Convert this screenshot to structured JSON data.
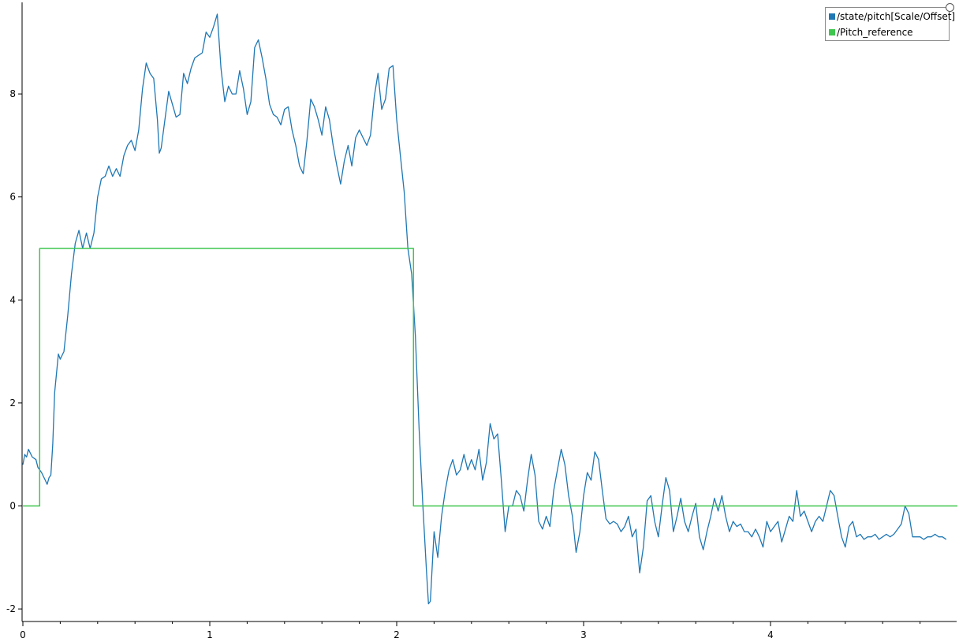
{
  "chart_data": {
    "type": "line",
    "title": "",
    "xlabel": "",
    "ylabel": "",
    "xlim": [
      0,
      5.0
    ],
    "ylim": [
      -2.1,
      9.8
    ],
    "grid": false,
    "legend_position": "top-right",
    "x_ticks": [
      0,
      1,
      2,
      3,
      4
    ],
    "x_tick_labels": [
      "0",
      "1",
      "2",
      "3",
      "4"
    ],
    "x_minor_step": 0.2,
    "y_ticks": [
      -2,
      0,
      2,
      4,
      6,
      8
    ],
    "y_tick_labels": [
      "-2",
      "0",
      "2",
      "4",
      "6",
      "8"
    ],
    "series": [
      {
        "name": "/state/pitch[Scale/Offset]",
        "color": "#1f77b4",
        "points": [
          [
            0.0,
            0.8
          ],
          [
            0.01,
            1.0
          ],
          [
            0.02,
            0.95
          ],
          [
            0.03,
            1.1
          ],
          [
            0.05,
            0.95
          ],
          [
            0.07,
            0.9
          ],
          [
            0.08,
            0.75
          ],
          [
            0.1,
            0.65
          ],
          [
            0.12,
            0.5
          ],
          [
            0.13,
            0.42
          ],
          [
            0.14,
            0.55
          ],
          [
            0.15,
            0.6
          ],
          [
            0.16,
            1.2
          ],
          [
            0.17,
            2.2
          ],
          [
            0.19,
            2.95
          ],
          [
            0.2,
            2.85
          ],
          [
            0.22,
            3.0
          ],
          [
            0.24,
            3.7
          ],
          [
            0.26,
            4.5
          ],
          [
            0.28,
            5.1
          ],
          [
            0.3,
            5.35
          ],
          [
            0.32,
            5.0
          ],
          [
            0.34,
            5.3
          ],
          [
            0.36,
            5.0
          ],
          [
            0.38,
            5.3
          ],
          [
            0.4,
            6.0
          ],
          [
            0.42,
            6.35
          ],
          [
            0.44,
            6.4
          ],
          [
            0.46,
            6.6
          ],
          [
            0.48,
            6.4
          ],
          [
            0.5,
            6.55
          ],
          [
            0.52,
            6.4
          ],
          [
            0.54,
            6.8
          ],
          [
            0.56,
            7.0
          ],
          [
            0.58,
            7.1
          ],
          [
            0.6,
            6.9
          ],
          [
            0.62,
            7.3
          ],
          [
            0.64,
            8.1
          ],
          [
            0.66,
            8.6
          ],
          [
            0.68,
            8.4
          ],
          [
            0.7,
            8.3
          ],
          [
            0.72,
            7.5
          ],
          [
            0.73,
            6.85
          ],
          [
            0.74,
            6.95
          ],
          [
            0.76,
            7.5
          ],
          [
            0.78,
            8.05
          ],
          [
            0.8,
            7.8
          ],
          [
            0.82,
            7.55
          ],
          [
            0.84,
            7.6
          ],
          [
            0.86,
            8.4
          ],
          [
            0.88,
            8.2
          ],
          [
            0.9,
            8.5
          ],
          [
            0.92,
            8.7
          ],
          [
            0.94,
            8.75
          ],
          [
            0.96,
            8.8
          ],
          [
            0.98,
            9.2
          ],
          [
            1.0,
            9.1
          ],
          [
            1.02,
            9.3
          ],
          [
            1.04,
            9.55
          ],
          [
            1.06,
            8.5
          ],
          [
            1.08,
            7.85
          ],
          [
            1.1,
            8.15
          ],
          [
            1.12,
            8.0
          ],
          [
            1.14,
            8.0
          ],
          [
            1.16,
            8.45
          ],
          [
            1.18,
            8.1
          ],
          [
            1.2,
            7.6
          ],
          [
            1.22,
            7.85
          ],
          [
            1.24,
            8.9
          ],
          [
            1.26,
            9.05
          ],
          [
            1.28,
            8.7
          ],
          [
            1.3,
            8.3
          ],
          [
            1.32,
            7.8
          ],
          [
            1.34,
            7.6
          ],
          [
            1.36,
            7.55
          ],
          [
            1.38,
            7.4
          ],
          [
            1.4,
            7.7
          ],
          [
            1.42,
            7.75
          ],
          [
            1.44,
            7.3
          ],
          [
            1.46,
            7.0
          ],
          [
            1.48,
            6.6
          ],
          [
            1.5,
            6.45
          ],
          [
            1.52,
            7.1
          ],
          [
            1.54,
            7.9
          ],
          [
            1.56,
            7.75
          ],
          [
            1.58,
            7.5
          ],
          [
            1.6,
            7.2
          ],
          [
            1.62,
            7.75
          ],
          [
            1.64,
            7.5
          ],
          [
            1.66,
            7.0
          ],
          [
            1.68,
            6.6
          ],
          [
            1.7,
            6.25
          ],
          [
            1.72,
            6.7
          ],
          [
            1.74,
            7.0
          ],
          [
            1.76,
            6.6
          ],
          [
            1.78,
            7.15
          ],
          [
            1.8,
            7.3
          ],
          [
            1.82,
            7.15
          ],
          [
            1.84,
            7.0
          ],
          [
            1.86,
            7.2
          ],
          [
            1.88,
            7.95
          ],
          [
            1.9,
            8.4
          ],
          [
            1.92,
            7.7
          ],
          [
            1.94,
            7.9
          ],
          [
            1.96,
            8.5
          ],
          [
            1.98,
            8.55
          ],
          [
            2.0,
            7.5
          ],
          [
            2.02,
            6.8
          ],
          [
            2.04,
            6.1
          ],
          [
            2.06,
            5.0
          ],
          [
            2.08,
            4.5
          ],
          [
            2.1,
            3.3
          ],
          [
            2.12,
            1.5
          ],
          [
            2.14,
            0.0
          ],
          [
            2.16,
            -1.3
          ],
          [
            2.17,
            -1.9
          ],
          [
            2.18,
            -1.85
          ],
          [
            2.2,
            -0.5
          ],
          [
            2.22,
            -1.0
          ],
          [
            2.24,
            -0.2
          ],
          [
            2.26,
            0.3
          ],
          [
            2.28,
            0.7
          ],
          [
            2.3,
            0.9
          ],
          [
            2.32,
            0.6
          ],
          [
            2.34,
            0.7
          ],
          [
            2.36,
            1.0
          ],
          [
            2.38,
            0.7
          ],
          [
            2.4,
            0.9
          ],
          [
            2.42,
            0.7
          ],
          [
            2.44,
            1.1
          ],
          [
            2.46,
            0.5
          ],
          [
            2.48,
            0.85
          ],
          [
            2.5,
            1.6
          ],
          [
            2.52,
            1.3
          ],
          [
            2.54,
            1.4
          ],
          [
            2.56,
            0.5
          ],
          [
            2.58,
            -0.5
          ],
          [
            2.6,
            0.0
          ],
          [
            2.62,
            0.0
          ],
          [
            2.64,
            0.3
          ],
          [
            2.66,
            0.2
          ],
          [
            2.68,
            -0.1
          ],
          [
            2.7,
            0.5
          ],
          [
            2.72,
            1.0
          ],
          [
            2.74,
            0.6
          ],
          [
            2.76,
            -0.3
          ],
          [
            2.78,
            -0.45
          ],
          [
            2.8,
            -0.2
          ],
          [
            2.82,
            -0.4
          ],
          [
            2.84,
            0.3
          ],
          [
            2.86,
            0.7
          ],
          [
            2.88,
            1.1
          ],
          [
            2.9,
            0.8
          ],
          [
            2.92,
            0.2
          ],
          [
            2.94,
            -0.2
          ],
          [
            2.96,
            -0.9
          ],
          [
            2.98,
            -0.5
          ],
          [
            3.0,
            0.2
          ],
          [
            3.02,
            0.65
          ],
          [
            3.04,
            0.5
          ],
          [
            3.06,
            1.05
          ],
          [
            3.08,
            0.9
          ],
          [
            3.1,
            0.3
          ],
          [
            3.12,
            -0.25
          ],
          [
            3.14,
            -0.35
          ],
          [
            3.16,
            -0.3
          ],
          [
            3.18,
            -0.35
          ],
          [
            3.2,
            -0.5
          ],
          [
            3.22,
            -0.4
          ],
          [
            3.24,
            -0.2
          ],
          [
            3.26,
            -0.6
          ],
          [
            3.28,
            -0.45
          ],
          [
            3.3,
            -1.3
          ],
          [
            3.32,
            -0.8
          ],
          [
            3.34,
            0.1
          ],
          [
            3.36,
            0.2
          ],
          [
            3.38,
            -0.3
          ],
          [
            3.4,
            -0.6
          ],
          [
            3.42,
            0.0
          ],
          [
            3.44,
            0.55
          ],
          [
            3.46,
            0.3
          ],
          [
            3.48,
            -0.5
          ],
          [
            3.5,
            -0.2
          ],
          [
            3.52,
            0.15
          ],
          [
            3.54,
            -0.3
          ],
          [
            3.56,
            -0.5
          ],
          [
            3.58,
            -0.2
          ],
          [
            3.6,
            0.05
          ],
          [
            3.62,
            -0.6
          ],
          [
            3.64,
            -0.85
          ],
          [
            3.66,
            -0.5
          ],
          [
            3.68,
            -0.2
          ],
          [
            3.7,
            0.15
          ],
          [
            3.72,
            -0.1
          ],
          [
            3.74,
            0.2
          ],
          [
            3.76,
            -0.2
          ],
          [
            3.78,
            -0.5
          ],
          [
            3.8,
            -0.3
          ],
          [
            3.82,
            -0.4
          ],
          [
            3.84,
            -0.35
          ],
          [
            3.86,
            -0.5
          ],
          [
            3.88,
            -0.5
          ],
          [
            3.9,
            -0.6
          ],
          [
            3.92,
            -0.45
          ],
          [
            3.94,
            -0.6
          ],
          [
            3.96,
            -0.8
          ],
          [
            3.98,
            -0.3
          ],
          [
            4.0,
            -0.5
          ],
          [
            4.02,
            -0.4
          ],
          [
            4.04,
            -0.3
          ],
          [
            4.06,
            -0.7
          ],
          [
            4.08,
            -0.45
          ],
          [
            4.1,
            -0.2
          ],
          [
            4.12,
            -0.3
          ],
          [
            4.14,
            0.3
          ],
          [
            4.16,
            -0.2
          ],
          [
            4.18,
            -0.1
          ],
          [
            4.2,
            -0.3
          ],
          [
            4.22,
            -0.5
          ],
          [
            4.24,
            -0.3
          ],
          [
            4.26,
            -0.2
          ],
          [
            4.28,
            -0.3
          ],
          [
            4.3,
            0.0
          ],
          [
            4.32,
            0.3
          ],
          [
            4.34,
            0.2
          ],
          [
            4.36,
            -0.2
          ],
          [
            4.38,
            -0.6
          ],
          [
            4.4,
            -0.8
          ],
          [
            4.42,
            -0.4
          ],
          [
            4.44,
            -0.3
          ],
          [
            4.46,
            -0.6
          ],
          [
            4.48,
            -0.55
          ],
          [
            4.5,
            -0.65
          ],
          [
            4.52,
            -0.6
          ],
          [
            4.54,
            -0.6
          ],
          [
            4.56,
            -0.55
          ],
          [
            4.58,
            -0.65
          ],
          [
            4.6,
            -0.6
          ],
          [
            4.62,
            -0.55
          ],
          [
            4.64,
            -0.6
          ],
          [
            4.66,
            -0.55
          ],
          [
            4.68,
            -0.45
          ],
          [
            4.7,
            -0.35
          ],
          [
            4.72,
            0.0
          ],
          [
            4.74,
            -0.15
          ],
          [
            4.76,
            -0.6
          ],
          [
            4.78,
            -0.6
          ],
          [
            4.8,
            -0.6
          ],
          [
            4.82,
            -0.65
          ],
          [
            4.84,
            -0.6
          ],
          [
            4.86,
            -0.6
          ],
          [
            4.88,
            -0.55
          ],
          [
            4.9,
            -0.6
          ],
          [
            4.92,
            -0.6
          ],
          [
            4.94,
            -0.65
          ]
        ]
      },
      {
        "name": "/Pitch_reference",
        "color": "#3ec64e",
        "points": [
          [
            0.0,
            0.0
          ],
          [
            0.09,
            0.0
          ],
          [
            0.09,
            5.0
          ],
          [
            2.09,
            5.0
          ],
          [
            2.09,
            0.0
          ],
          [
            5.0,
            0.0
          ]
        ]
      }
    ]
  }
}
